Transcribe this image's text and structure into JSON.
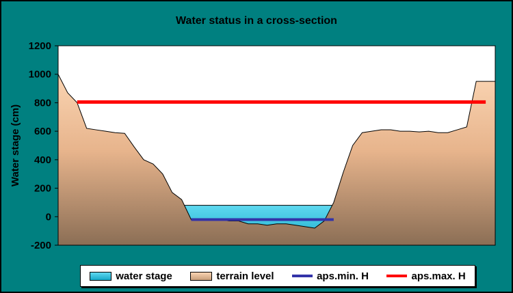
{
  "chart_data": {
    "type": "area",
    "title": "Water status in a cross-section",
    "xlabel": "",
    "ylabel": "Water stage (cm)",
    "ylim": [
      -200,
      1200
    ],
    "yticks": [
      -200,
      0,
      200,
      400,
      600,
      800,
      1000,
      1200
    ],
    "grid": false,
    "legend_position": "bottom",
    "colors": {
      "water": "#29C5E6",
      "terrain": "#E7B48C",
      "terrain_top": "#FAD4B2",
      "terrain_bottom": "#8B6E55",
      "aps_min": "#3333A8",
      "aps_max": "#FF0000",
      "plot_bg": "#FFFFFF",
      "frame_bg": "#008080"
    },
    "series": [
      {
        "name": "terrain level",
        "x": [
          0,
          1,
          2,
          3,
          4,
          5,
          6,
          7,
          8,
          9,
          10,
          11,
          12,
          13,
          14,
          15,
          16,
          17,
          18,
          19,
          20,
          21,
          22,
          23,
          24,
          25,
          26,
          27,
          28,
          29,
          30,
          31,
          32,
          33,
          34,
          35,
          36,
          37,
          38,
          39,
          40,
          41,
          42,
          43,
          44,
          45,
          46
        ],
        "values": [
          1000,
          870,
          800,
          620,
          610,
          600,
          590,
          585,
          490,
          400,
          370,
          300,
          170,
          120,
          -20,
          -20,
          -20,
          -20,
          -30,
          -30,
          -50,
          -50,
          -60,
          -50,
          -50,
          -60,
          -70,
          -80,
          -30,
          100,
          310,
          500,
          590,
          600,
          610,
          610,
          600,
          600,
          595,
          600,
          590,
          590,
          610,
          630,
          950,
          950,
          950
        ]
      },
      {
        "name": "water stage",
        "x_range": [
          13,
          29
        ],
        "level": 80
      },
      {
        "name": "aps.min. H",
        "x_range": [
          14,
          29
        ],
        "level": -20
      },
      {
        "name": "aps.max. H",
        "x_range": [
          2,
          45
        ],
        "level": 805
      }
    ]
  },
  "legend": {
    "items": [
      {
        "label": "water stage"
      },
      {
        "label": "terrain level"
      },
      {
        "label": "aps.min. H"
      },
      {
        "label": "aps.max. H"
      }
    ]
  }
}
